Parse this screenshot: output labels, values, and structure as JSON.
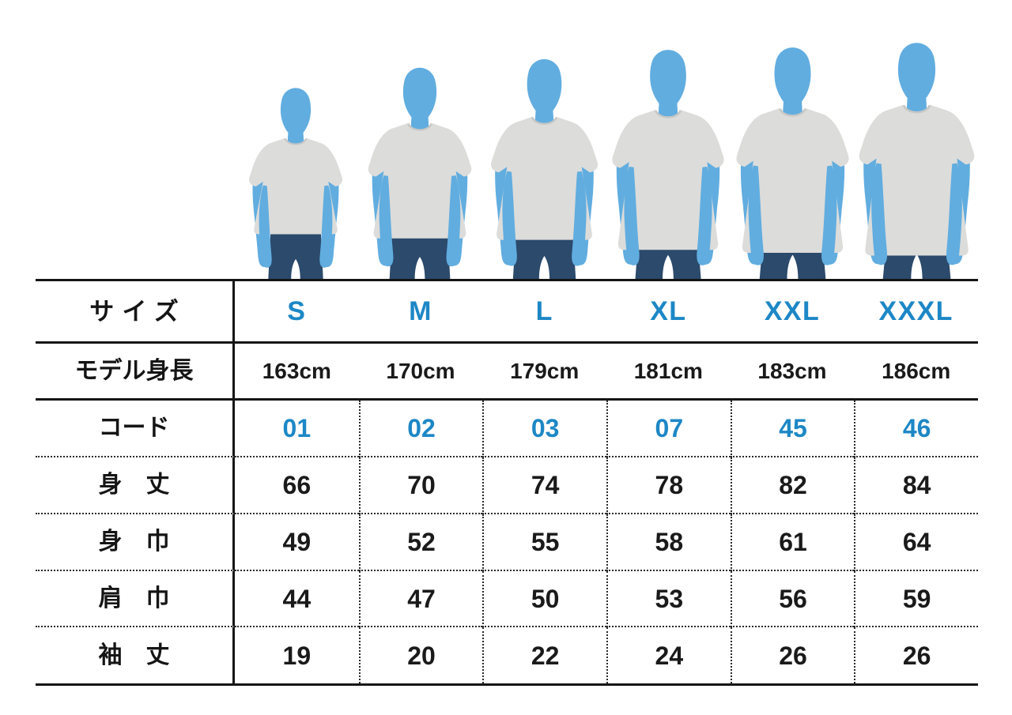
{
  "colors": {
    "accent_blue": "#1d87c6",
    "text_black": "#1a1a1a",
    "line_black": "#151515",
    "figure_blue": "#61ade0",
    "shirt_gray": "#dcdcda",
    "collar_gray": "#c7c7c5",
    "jeans_navy": "#2b4a6c"
  },
  "figures": [
    {
      "size": "S"
    },
    {
      "size": "M"
    },
    {
      "size": "L"
    },
    {
      "size": "XL"
    },
    {
      "size": "XXL"
    },
    {
      "size": "XXXL"
    }
  ],
  "chart_data": {
    "type": "table",
    "corner_label": "サイズ",
    "columns": [
      "S",
      "M",
      "L",
      "XL",
      "XXL",
      "XXXL"
    ],
    "rows": [
      {
        "label": "モデル身長",
        "values": [
          "163cm",
          "170cm",
          "179cm",
          "181cm",
          "183cm",
          "186cm"
        ],
        "value_color": "black",
        "value_style": "cm"
      },
      {
        "label": "コード",
        "values": [
          "01",
          "02",
          "03",
          "07",
          "45",
          "46"
        ],
        "value_color": "blue",
        "value_style": ""
      },
      {
        "label": "身　丈",
        "values": [
          "66",
          "70",
          "74",
          "78",
          "82",
          "84"
        ],
        "value_color": "black",
        "value_style": ""
      },
      {
        "label": "身　巾",
        "values": [
          "49",
          "52",
          "55",
          "58",
          "61",
          "64"
        ],
        "value_color": "black",
        "value_style": ""
      },
      {
        "label": "肩　巾",
        "values": [
          "44",
          "47",
          "50",
          "53",
          "56",
          "59"
        ],
        "value_color": "black",
        "value_style": ""
      },
      {
        "label": "袖　丈",
        "values": [
          "19",
          "20",
          "22",
          "24",
          "26",
          "26"
        ],
        "value_color": "black",
        "value_style": ""
      }
    ]
  }
}
